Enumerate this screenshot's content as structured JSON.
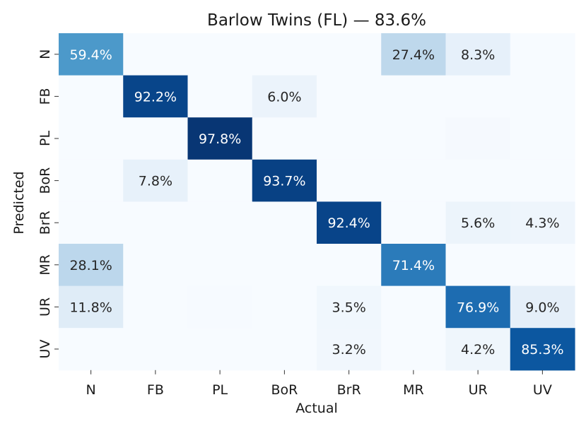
{
  "chart_data": {
    "type": "heatmap",
    "title": "Barlow Twins (FL) — 83.6%",
    "xlabel": "Actual",
    "ylabel": "Predicted",
    "x_categories": [
      "N",
      "FB",
      "PL",
      "BoR",
      "BrR",
      "MR",
      "UR",
      "UV"
    ],
    "y_categories": [
      "N",
      "FB",
      "PL",
      "BoR",
      "BrR",
      "MR",
      "UR",
      "UV"
    ],
    "colormap": "Blues",
    "label_threshold": 3.0,
    "values": [
      [
        59.4,
        0.0,
        0.0,
        0.0,
        0.0,
        27.4,
        8.3,
        0.0
      ],
      [
        0.0,
        92.2,
        0.0,
        6.0,
        0.0,
        0.0,
        0.0,
        0.0
      ],
      [
        0.0,
        0.0,
        97.8,
        0.0,
        0.0,
        0.0,
        1.2,
        0.0
      ],
      [
        0.0,
        7.8,
        0.0,
        93.7,
        0.0,
        0.0,
        0.0,
        0.0
      ],
      [
        0.0,
        0.0,
        0.0,
        0.0,
        92.4,
        0.0,
        5.6,
        4.3
      ],
      [
        28.1,
        0.0,
        0.0,
        0.0,
        0.0,
        71.4,
        0.0,
        0.0
      ],
      [
        11.8,
        0.0,
        0.5,
        0.0,
        3.5,
        0.0,
        76.9,
        9.0
      ],
      [
        0.0,
        0.0,
        0.0,
        0.0,
        3.2,
        0.0,
        4.2,
        85.3
      ]
    ],
    "vmin": 0,
    "vmax": 100,
    "grid": false,
    "colorbar": false
  }
}
